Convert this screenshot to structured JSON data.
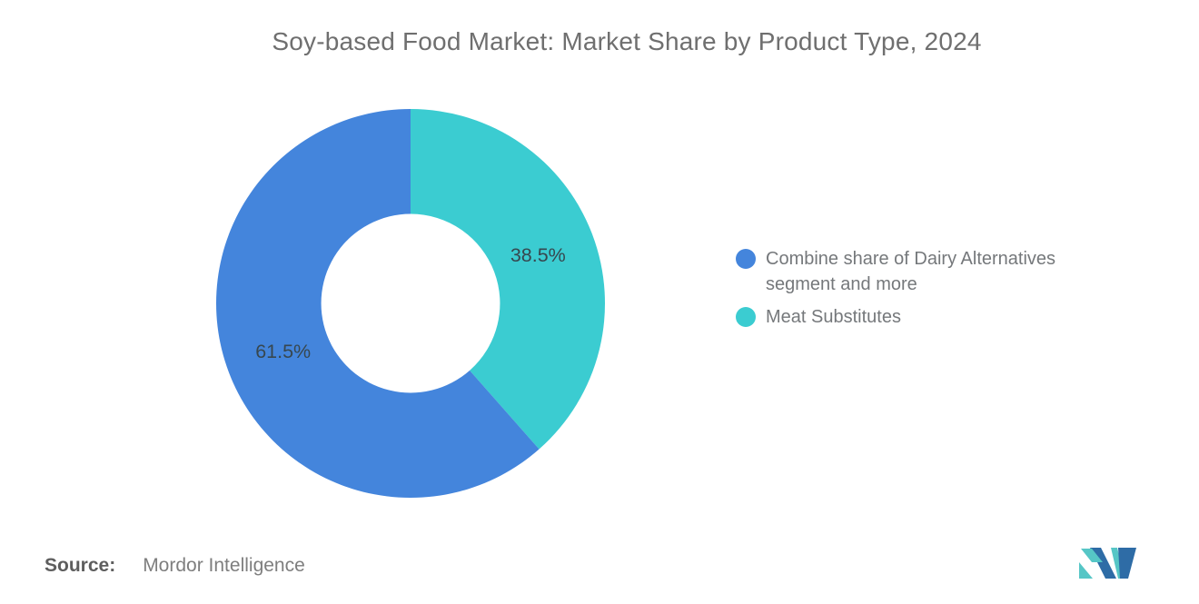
{
  "title": "Soy-based Food Market: Market Share by Product Type, 2024",
  "chart_data": {
    "type": "pie",
    "subtype": "donut",
    "title": "Soy-based Food Market: Market Share by Product Type, 2024",
    "start_angle_deg": 0,
    "direction": "clockwise",
    "inner_radius_ratio": 0.46,
    "label_radius": 150,
    "label_color": "#37474F",
    "label_font_size": 21.5,
    "legend_position": "right",
    "slices": [
      {
        "label": "Meat Substitutes",
        "value": 38.5,
        "display": "38.5%",
        "color": "#3BCCD1"
      },
      {
        "label": "Combine share of Dairy Alternatives segment and more",
        "value": 61.5,
        "display": "61.5%",
        "color": "#4485DC"
      }
    ]
  },
  "legend": {
    "items": [
      {
        "label": "Combine share of Dairy Alternatives segment and more",
        "color": "#4485DC"
      },
      {
        "label": "Meat Substitutes",
        "color": "#3BCCD1"
      }
    ]
  },
  "source": {
    "prefix": "Source:",
    "name": "Mordor Intelligence"
  },
  "logo": {
    "name": "mordor-intelligence-logo",
    "blue": "#2E6CA6",
    "teal": "#56C6C6"
  },
  "colors": {
    "background": "#FFFFFF",
    "title_text": "#6F6F6F",
    "legend_text": "#75787B",
    "source_prefix_text": "#5E5E5E",
    "source_name_text": "#7E7E7E",
    "slice_label_text": "#37474F"
  }
}
